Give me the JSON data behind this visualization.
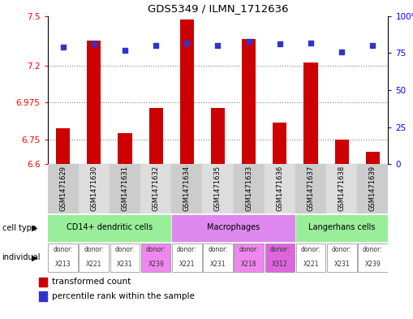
{
  "title": "GDS5349 / ILMN_1712636",
  "samples": [
    "GSM1471629",
    "GSM1471630",
    "GSM1471631",
    "GSM1471632",
    "GSM1471634",
    "GSM1471635",
    "GSM1471633",
    "GSM1471636",
    "GSM1471637",
    "GSM1471638",
    "GSM1471639"
  ],
  "transformed_counts": [
    6.82,
    7.35,
    6.79,
    6.94,
    7.48,
    6.94,
    7.36,
    6.855,
    7.22,
    6.75,
    6.675
  ],
  "percentile_ranks": [
    79,
    81,
    77,
    80,
    82,
    80,
    83,
    81,
    82,
    76,
    80
  ],
  "ylim_left": [
    6.6,
    7.5
  ],
  "ylim_right": [
    0,
    100
  ],
  "yticks_left": [
    6.6,
    6.75,
    6.975,
    7.2,
    7.5
  ],
  "yticks_right": [
    0,
    25,
    50,
    75,
    100
  ],
  "ytick_labels_right": [
    "0",
    "25",
    "50",
    "75",
    "100%"
  ],
  "grid_values": [
    6.75,
    6.975,
    7.2
  ],
  "bar_color": "#cc0000",
  "dot_color": "#3333cc",
  "bar_bottom": 6.6,
  "cell_type_groups": [
    {
      "label": "CD14+ dendritic cells",
      "start": 0,
      "end": 4,
      "color": "#99ee99"
    },
    {
      "label": "Macrophages",
      "start": 4,
      "end": 8,
      "color": "#dd88ee"
    },
    {
      "label": "Langerhans cells",
      "start": 8,
      "end": 11,
      "color": "#99ee99"
    }
  ],
  "indiv_donors": [
    "X213",
    "X221",
    "X231",
    "X239",
    "X221",
    "X231",
    "X218",
    "X312",
    "X221",
    "X231",
    "X239"
  ],
  "indiv_colors": [
    "#ffffff",
    "#ffffff",
    "#ffffff",
    "#ee88ee",
    "#ffffff",
    "#ffffff",
    "#ee88ee",
    "#dd66dd",
    "#ffffff",
    "#ffffff",
    "#ffffff"
  ],
  "sample_col_colors": [
    "#cccccc",
    "#dddddd",
    "#cccccc",
    "#dddddd",
    "#cccccc",
    "#dddddd",
    "#cccccc",
    "#dddddd",
    "#cccccc",
    "#dddddd",
    "#cccccc"
  ]
}
